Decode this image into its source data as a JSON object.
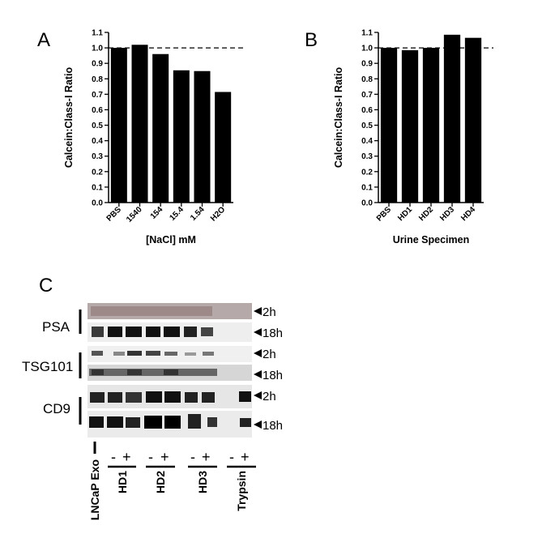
{
  "chart_data": [
    {
      "type": "bar",
      "panel": "A",
      "categories": [
        "PBS",
        "1540",
        "154",
        "15.4",
        "1.54",
        "H2O"
      ],
      "values": [
        1.0,
        1.02,
        0.96,
        0.855,
        0.85,
        0.715
      ],
      "xlabel": "[NaCl] mM",
      "ylabel": "Calcein:Class-I Ratio",
      "ylim": [
        0,
        1.1
      ],
      "yticks": [
        "0.0",
        "0.1",
        "0.2",
        "0.3",
        "0.4",
        "0.5",
        "0.6",
        "0.7",
        "0.8",
        "0.9",
        "1.0",
        "1.1"
      ],
      "reference_line": 1.0,
      "bar_color": "#000000"
    },
    {
      "type": "bar",
      "panel": "B",
      "categories": [
        "PBS",
        "HD1",
        "HD2",
        "HD3",
        "HD4"
      ],
      "values": [
        1.0,
        0.985,
        1.0,
        1.085,
        1.065
      ],
      "xlabel": "Urine Specimen",
      "ylabel": "Calcein:Class-I Ratio",
      "ylim": [
        0,
        1.1
      ],
      "yticks": [
        "0.0",
        "0.1",
        "0.2",
        "0.3",
        "0.4",
        "0.5",
        "0.6",
        "0.7",
        "0.8",
        "0.9",
        "1.0",
        "1.1"
      ],
      "reference_line": 1.0,
      "bar_color": "#000000"
    }
  ],
  "blot": {
    "panel": "C",
    "proteins": [
      "PSA",
      "TSG101",
      "CD9"
    ],
    "time_labels": [
      "2h",
      "18h",
      "2h",
      "18h",
      "2h",
      "18h"
    ],
    "signs": [
      "-",
      "+",
      "-",
      "+",
      "-",
      "+",
      "-",
      "+"
    ],
    "lane_groups": [
      "LNCaP Exo",
      "HD1",
      "HD2",
      "HD3",
      "Trypsin"
    ]
  }
}
